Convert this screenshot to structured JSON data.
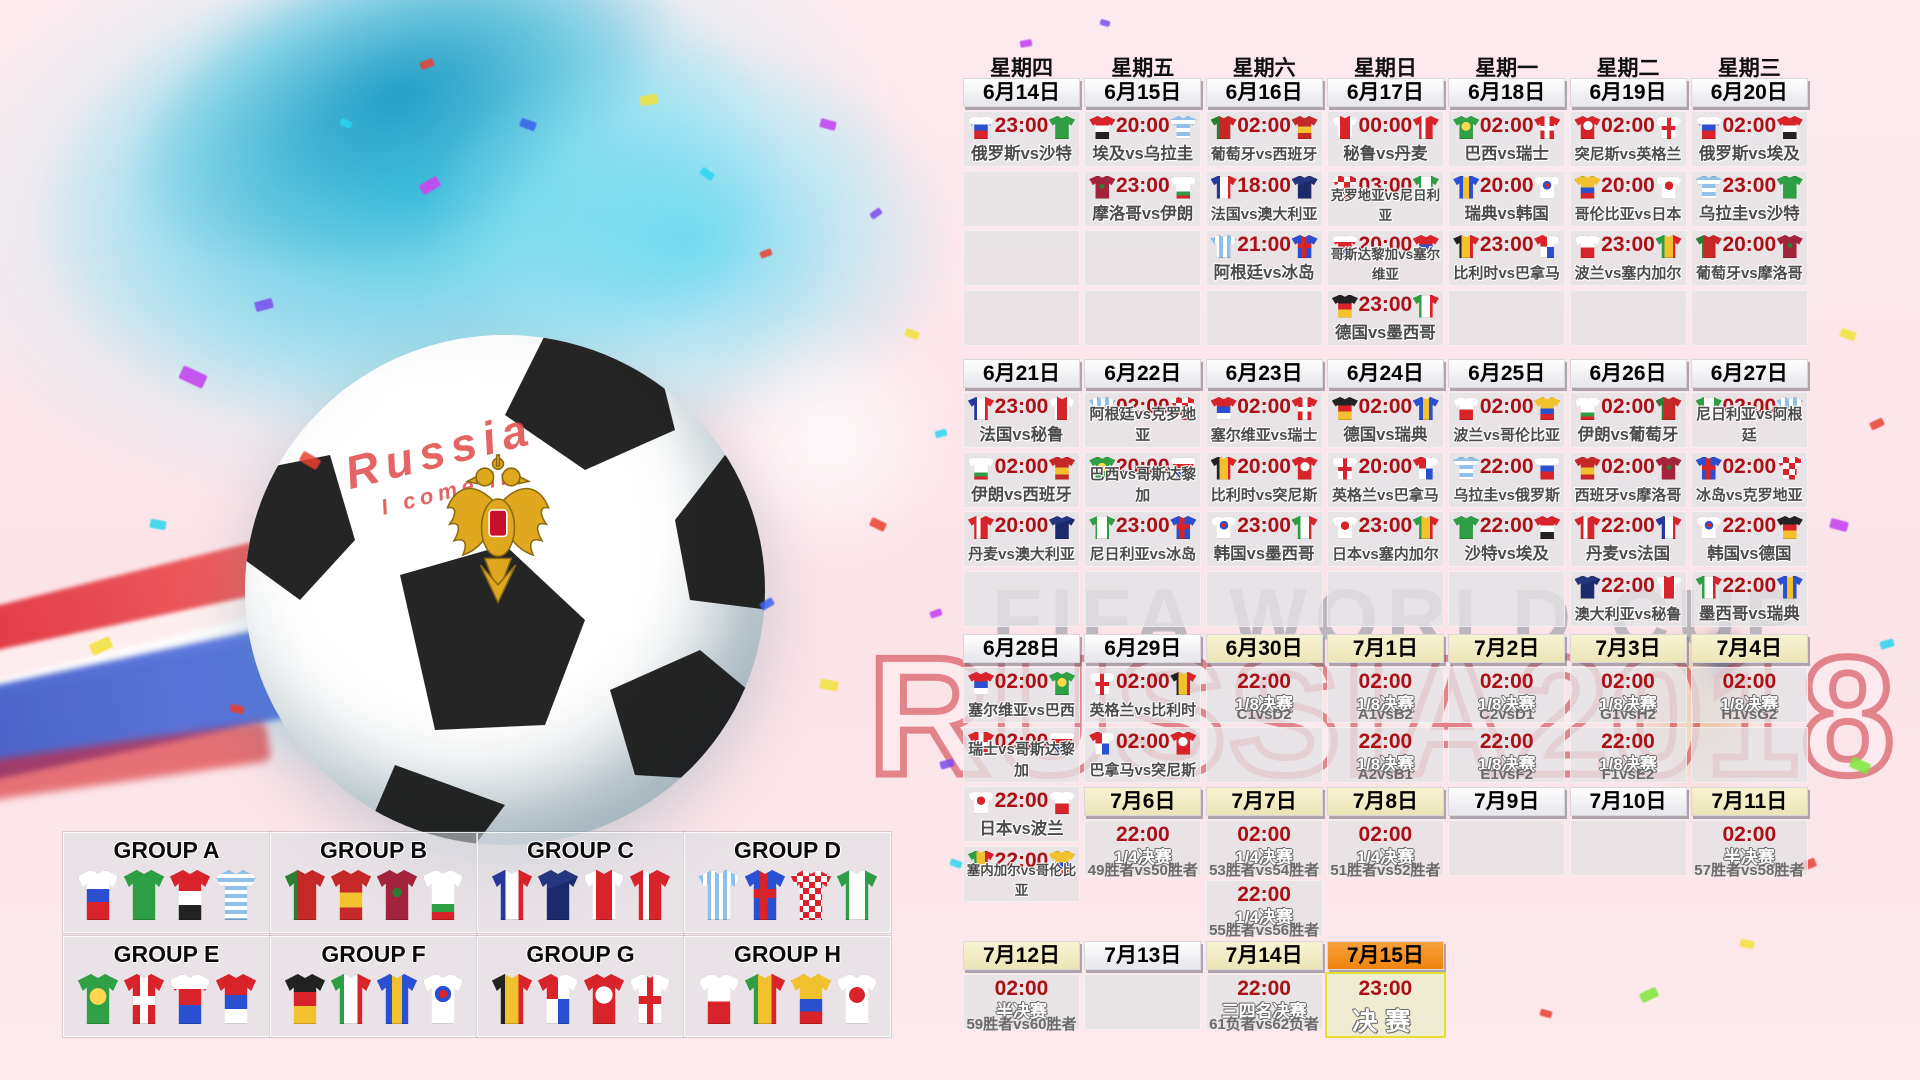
{
  "watermark": {
    "title": "FIFA WORLD CUP",
    "subtitle": "RUSSIA2018"
  },
  "ball": {
    "graffiti_line1": "Russia",
    "graffiti_line2": "I come in"
  },
  "colors": {
    "time_red": "#ab1016",
    "final_orange": "#f6891a",
    "knockout_header_cream": "#f2eecb",
    "cell_gray": "#e6e5e7",
    "background_pink": "#fbe4e9",
    "art_teal": "#52cfe0",
    "final_cell_border_yellow": "#e6df32"
  },
  "calendar": {
    "weekdays": [
      "星期四",
      "星期五",
      "星期六",
      "星期日",
      "星期一",
      "星期二",
      "星期三"
    ],
    "weeks": [
      {
        "cols": [
          {
            "date": "6月14日",
            "style": "plain",
            "cells": [
              {
                "t": "23:00",
                "m": "俄罗斯vs沙特",
                "h": "ru",
                "a": "sa"
              },
              {},
              {},
              {}
            ]
          },
          {
            "date": "6月15日",
            "style": "plain",
            "cells": [
              {
                "t": "20:00",
                "m": "埃及vs乌拉圭",
                "h": "eg",
                "a": "uy"
              },
              {
                "t": "23:00",
                "m": "摩洛哥vs伊朗",
                "h": "ma",
                "a": "ir"
              },
              {},
              {}
            ]
          },
          {
            "date": "6月16日",
            "style": "plain",
            "cells": [
              {
                "t": "02:00",
                "m": "葡萄牙vs西班牙",
                "h": "pt",
                "a": "es"
              },
              {
                "t": "18:00",
                "m": "法国vs澳大利亚",
                "h": "fr",
                "a": "au"
              },
              {
                "t": "21:00",
                "m": "阿根廷vs冰岛",
                "h": "ar",
                "a": "is"
              },
              {}
            ]
          },
          {
            "date": "6月17日",
            "style": "plain",
            "cells": [
              {
                "t": "00:00",
                "m": "秘鲁vs丹麦",
                "h": "pe",
                "a": "dk"
              },
              {
                "t": "03:00",
                "m": "克罗地亚vs尼日利亚",
                "h": "hr",
                "a": "ng"
              },
              {
                "t": "20:00",
                "m": "哥斯达黎加vs塞尔维亚",
                "h": "cr",
                "a": "rs"
              },
              {
                "t": "23:00",
                "m": "德国vs墨西哥",
                "h": "de",
                "a": "mx"
              }
            ]
          },
          {
            "date": "6月18日",
            "style": "plain",
            "cells": [
              {
                "t": "02:00",
                "m": "巴西vs瑞士",
                "h": "br",
                "a": "ch"
              },
              {
                "t": "20:00",
                "m": "瑞典vs韩国",
                "h": "se",
                "a": "kr"
              },
              {
                "t": "23:00",
                "m": "比利时vs巴拿马",
                "h": "be",
                "a": "pa"
              },
              {}
            ]
          },
          {
            "date": "6月19日",
            "style": "plain",
            "cells": [
              {
                "t": "02:00",
                "m": "突尼斯vs英格兰",
                "h": "tn",
                "a": "en"
              },
              {
                "t": "20:00",
                "m": "哥伦比亚vs日本",
                "h": "co",
                "a": "jp"
              },
              {
                "t": "23:00",
                "m": "波兰vs塞内加尔",
                "h": "pl",
                "a": "sn"
              },
              {}
            ]
          },
          {
            "date": "6月20日",
            "style": "plain",
            "cells": [
              {
                "t": "02:00",
                "m": "俄罗斯vs埃及",
                "h": "ru",
                "a": "eg"
              },
              {
                "t": "23:00",
                "m": "乌拉圭vs沙特",
                "h": "uy",
                "a": "sa"
              },
              {
                "t": "20:00",
                "m": "葡萄牙vs摩洛哥",
                "h": "pt",
                "a": "ma"
              },
              {}
            ]
          }
        ]
      },
      {
        "cols": [
          {
            "date": "6月21日",
            "style": "plain",
            "cells": [
              {
                "t": "23:00",
                "m": "法国vs秘鲁",
                "h": "fr",
                "a": "pe"
              },
              {
                "t": "02:00",
                "m": "伊朗vs西班牙",
                "h": "ir",
                "a": "es"
              },
              {
                "t": "20:00",
                "m": "丹麦vs澳大利亚",
                "h": "dk",
                "a": "au"
              },
              {}
            ]
          },
          {
            "date": "6月22日",
            "style": "plain",
            "cells": [
              {
                "t": "02:00",
                "m": "阿根廷vs克罗地亚",
                "h": "ar",
                "a": "hr"
              },
              {
                "t": "20:00",
                "m": "巴西vs哥斯达黎加",
                "h": "br",
                "a": "cr"
              },
              {
                "t": "23:00",
                "m": "尼日利亚vs冰岛",
                "h": "ng",
                "a": "is"
              },
              {}
            ]
          },
          {
            "date": "6月23日",
            "style": "plain",
            "cells": [
              {
                "t": "02:00",
                "m": "塞尔维亚vs瑞士",
                "h": "rs",
                "a": "ch"
              },
              {
                "t": "20:00",
                "m": "比利时vs突尼斯",
                "h": "be",
                "a": "tn"
              },
              {
                "t": "23:00",
                "m": "韩国vs墨西哥",
                "h": "kr",
                "a": "mx"
              },
              {}
            ]
          },
          {
            "date": "6月24日",
            "style": "plain",
            "cells": [
              {
                "t": "02:00",
                "m": "德国vs瑞典",
                "h": "de",
                "a": "se"
              },
              {
                "t": "20:00",
                "m": "英格兰vs巴拿马",
                "h": "en",
                "a": "pa"
              },
              {
                "t": "23:00",
                "m": "日本vs塞内加尔",
                "h": "jp",
                "a": "sn"
              },
              {}
            ]
          },
          {
            "date": "6月25日",
            "style": "plain",
            "cells": [
              {
                "t": "02:00",
                "m": "波兰vs哥伦比亚",
                "h": "pl",
                "a": "co"
              },
              {
                "t": "22:00",
                "m": "乌拉圭vs俄罗斯",
                "h": "uy",
                "a": "ru"
              },
              {
                "t": "22:00",
                "m": "沙特vs埃及",
                "h": "sa",
                "a": "eg"
              },
              {}
            ]
          },
          {
            "date": "6月26日",
            "style": "plain",
            "cells": [
              {
                "t": "02:00",
                "m": "伊朗vs葡萄牙",
                "h": "ir",
                "a": "pt"
              },
              {
                "t": "02:00",
                "m": "西班牙vs摩洛哥",
                "h": "es",
                "a": "ma"
              },
              {
                "t": "22:00",
                "m": "丹麦vs法国",
                "h": "dk",
                "a": "fr"
              },
              {
                "t": "22:00",
                "m": "澳大利亚vs秘鲁",
                "h": "au",
                "a": "pe"
              }
            ]
          },
          {
            "date": "6月27日",
            "style": "plain",
            "cells": [
              {
                "t": "02:00",
                "m": "尼日利亚vs阿根廷",
                "h": "ng",
                "a": "ar"
              },
              {
                "t": "02:00",
                "m": "冰岛vs克罗地亚",
                "h": "is",
                "a": "hr"
              },
              {
                "t": "22:00",
                "m": "韩国vs德国",
                "h": "kr",
                "a": "de"
              },
              {
                "t": "22:00",
                "m": "墨西哥vs瑞典",
                "h": "mx",
                "a": "se"
              }
            ]
          }
        ]
      },
      {
        "cols": [
          {
            "date": "6月28日",
            "style": "plain",
            "cells": [
              {
                "t": "02:00",
                "m": "塞尔维亚vs巴西",
                "h": "rs",
                "a": "br"
              },
              {
                "t": "02:00",
                "m": "瑞士vs哥斯达黎加",
                "h": "ch",
                "a": "cr"
              },
              {
                "t": "22:00",
                "m": "日本vs波兰",
                "h": "jp",
                "a": "pl"
              },
              {
                "t": "22:00",
                "m": "塞内加尔vs哥伦比亚",
                "h": "sn",
                "a": "co"
              }
            ]
          },
          {
            "date": "6月29日",
            "style": "plain",
            "cells": [
              {
                "t": "02:00",
                "m": "英格兰vs比利时",
                "h": "en",
                "a": "be"
              },
              {
                "t": "02:00",
                "m": "巴拿马vs突尼斯",
                "h": "pa",
                "a": "tn"
              }
            ]
          },
          {
            "date": "6月30日",
            "style": "cream",
            "cells": [
              {
                "t": "22:00",
                "s": "1/8决赛",
                "m": "C1vsD2"
              },
              {}
            ]
          },
          {
            "date": "7月1日",
            "style": "cream",
            "cells": [
              {
                "t": "02:00",
                "s": "1/8决赛",
                "m": "A1vsB2"
              },
              {
                "t": "22:00",
                "s": "1/8决赛",
                "m": "A2vsB1"
              }
            ]
          },
          {
            "date": "7月2日",
            "style": "cream",
            "cells": [
              {
                "t": "02:00",
                "s": "1/8决赛",
                "m": "C2vsD1"
              },
              {
                "t": "22:00",
                "s": "1/8决赛",
                "m": "E1vsF2"
              }
            ]
          },
          {
            "date": "7月3日",
            "style": "cream",
            "cells": [
              {
                "t": "02:00",
                "s": "1/8决赛",
                "m": "G1vsH2"
              },
              {
                "t": "22:00",
                "s": "1/8决赛",
                "m": "F1vsE2"
              }
            ]
          },
          {
            "date": "7月4日",
            "style": "cream",
            "cells": [
              {
                "t": "02:00",
                "s": "1/8决赛",
                "m": "H1vsG2"
              },
              {}
            ]
          }
        ]
      },
      {
        "cols": [
          null,
          {
            "date": "7月6日",
            "style": "cream",
            "cells": [
              {
                "t": "22:00",
                "s": "1/4决赛",
                "m": "49胜者vs50胜者"
              }
            ]
          },
          {
            "date": "7月7日",
            "style": "cream",
            "cells": [
              {
                "t": "02:00",
                "s": "1/4决赛",
                "m": "53胜者vs54胜者"
              },
              {
                "t": "22:00",
                "s": "1/4决赛",
                "m": "55胜者vs56胜者"
              }
            ]
          },
          {
            "date": "7月8日",
            "style": "cream",
            "cells": [
              {
                "t": "02:00",
                "s": "1/4决赛",
                "m": "51胜者vs52胜者"
              }
            ]
          },
          {
            "date": "7月9日",
            "style": "plain",
            "cells": [
              {}
            ]
          },
          {
            "date": "7月10日",
            "style": "plain",
            "cells": [
              {}
            ]
          },
          {
            "date": "7月11日",
            "style": "cream",
            "cells": [
              {
                "t": "02:00",
                "s": "半决赛",
                "m": "57胜者vs58胜者"
              }
            ]
          }
        ]
      },
      {
        "cols": [
          {
            "date": "7月12日",
            "style": "cream",
            "cells": [
              {
                "t": "02:00",
                "s": "半决赛",
                "m": "59胜者vs60胜者"
              }
            ]
          },
          {
            "date": "7月13日",
            "style": "plain",
            "cells": [
              {}
            ]
          },
          {
            "date": "7月14日",
            "style": "cream",
            "cells": [
              {
                "t": "22:00",
                "s": "三四名决赛",
                "m": "61负者vs62负者"
              }
            ]
          },
          {
            "date": "7月15日",
            "style": "final",
            "cells": [
              {
                "t": "23:00",
                "s": "决赛",
                "final": true
              }
            ]
          },
          null,
          null,
          null
        ]
      }
    ]
  },
  "groups": [
    {
      "name": "GROUP A",
      "teams": [
        "ru",
        "sa",
        "eg",
        "uy"
      ]
    },
    {
      "name": "GROUP B",
      "teams": [
        "pt",
        "es",
        "ma",
        "ir"
      ]
    },
    {
      "name": "GROUP C",
      "teams": [
        "fr",
        "au",
        "pe",
        "dk"
      ]
    },
    {
      "name": "GROUP D",
      "teams": [
        "ar",
        "is",
        "hr",
        "ng"
      ]
    },
    {
      "name": "GROUP E",
      "teams": [
        "br",
        "ch",
        "cr",
        "rs"
      ]
    },
    {
      "name": "GROUP F",
      "teams": [
        "de",
        "mx",
        "se",
        "kr"
      ]
    },
    {
      "name": "GROUP G",
      "teams": [
        "be",
        "pa",
        "tn",
        "en"
      ]
    },
    {
      "name": "GROUP H",
      "teams": [
        "pl",
        "sn",
        "co",
        "jp"
      ]
    }
  ]
}
